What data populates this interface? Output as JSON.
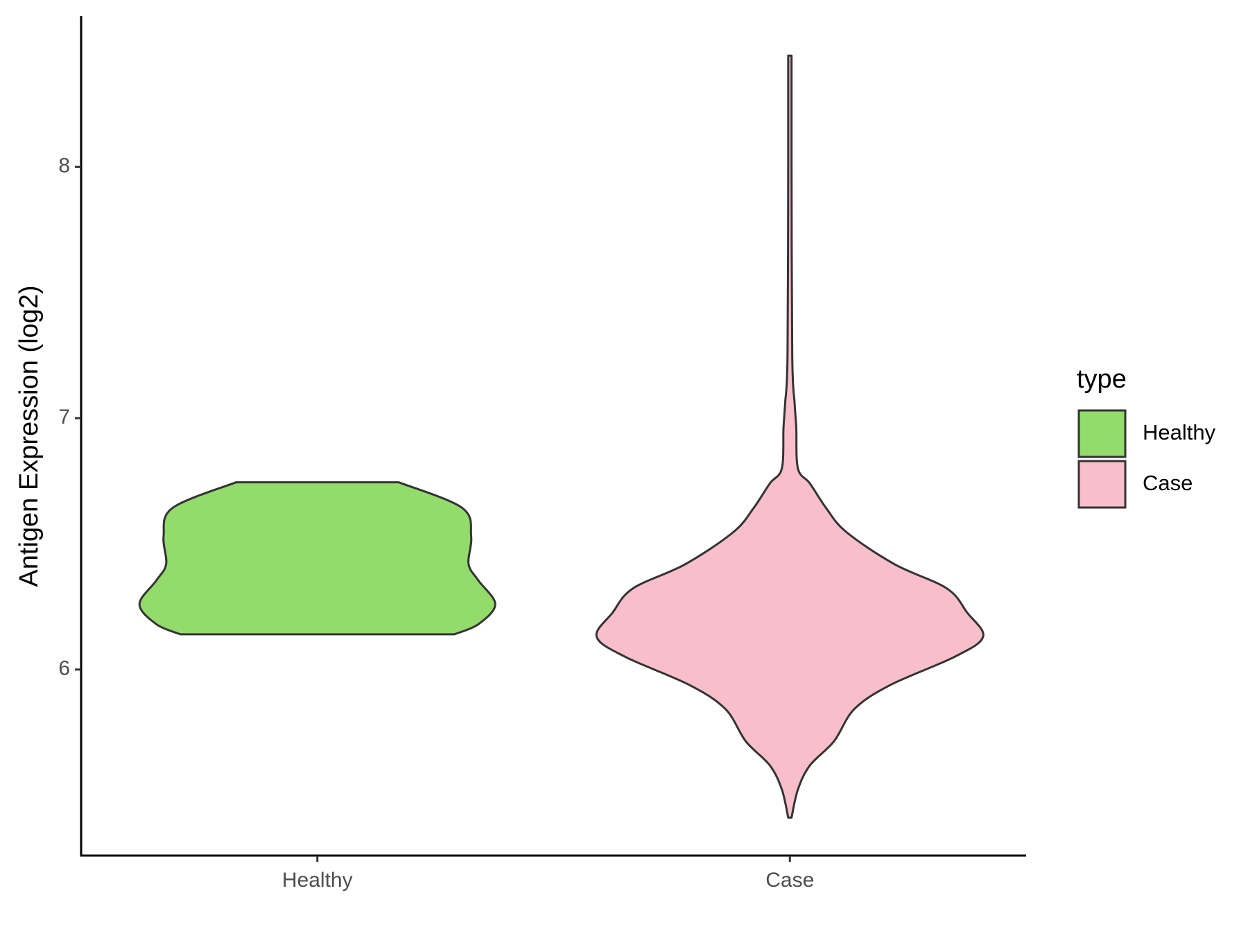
{
  "chart_data": {
    "type": "violin",
    "y_label": "Antigen Expression (log2)",
    "categories": [
      "Healthy",
      "Case"
    ],
    "legend_title": "type",
    "legend": "right",
    "ylim": [
      5.26,
      8.6
    ],
    "yticks": [
      6,
      7,
      8
    ],
    "series": [
      {
        "name": "Healthy",
        "color": "#93db6b",
        "y": [
          6.745,
          6.643,
          6.53,
          6.42,
          6.355,
          6.26,
          6.18,
          6.14
        ],
        "density": [
          0.344,
          0.613,
          0.651,
          0.64,
          0.681,
          0.753,
          0.681,
          0.579
        ]
      },
      {
        "name": "Case",
        "color": "#f8bfca",
        "y": [
          8.442,
          8.02,
          7.25,
          7.06,
          6.963,
          6.8,
          6.74,
          6.643,
          6.547,
          6.419,
          6.323,
          6.227,
          6.131,
          6.051,
          5.939,
          5.843,
          5.715,
          5.619,
          5.523,
          5.411
        ],
        "density": [
          0.007,
          0.007,
          0.01,
          0.02,
          0.027,
          0.034,
          0.085,
          0.153,
          0.239,
          0.443,
          0.664,
          0.75,
          0.818,
          0.698,
          0.426,
          0.273,
          0.187,
          0.085,
          0.034,
          0.007
        ]
      }
    ]
  }
}
